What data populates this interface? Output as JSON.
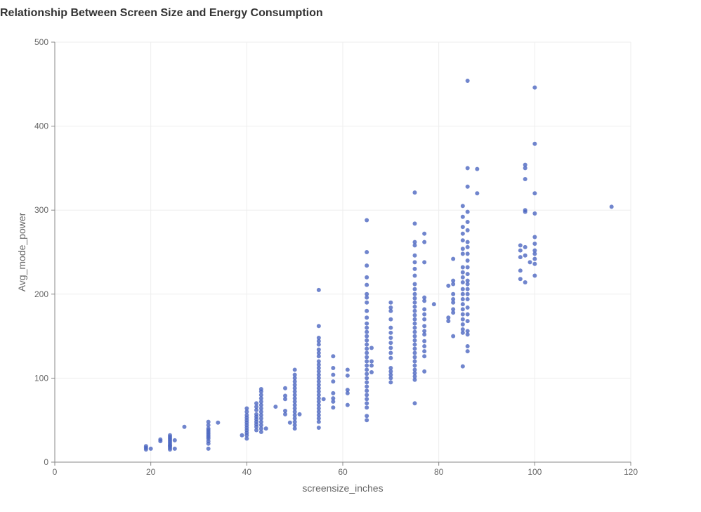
{
  "chart_data": {
    "type": "scatter",
    "title": "Relationship Between Screen Size and Energy Consumption",
    "xlabel": "screensize_inches",
    "ylabel": "Avg_mode_power",
    "xlim": [
      0,
      120
    ],
    "ylim": [
      0,
      500
    ],
    "x_ticks": [
      "0",
      "20",
      "40",
      "60",
      "80",
      "100",
      "120"
    ],
    "y_ticks": [
      "0",
      "100",
      "200",
      "300",
      "400",
      "500"
    ],
    "grid": true,
    "point_color": "#4c66c0",
    "points": [
      [
        19,
        15
      ],
      [
        19,
        17
      ],
      [
        19,
        19
      ],
      [
        20,
        16
      ],
      [
        22,
        25
      ],
      [
        22,
        27
      ],
      [
        24,
        15
      ],
      [
        24,
        17
      ],
      [
        24,
        19
      ],
      [
        24,
        20
      ],
      [
        24,
        22
      ],
      [
        24,
        24
      ],
      [
        24,
        26
      ],
      [
        24,
        28
      ],
      [
        24,
        30
      ],
      [
        24,
        32
      ],
      [
        25,
        16
      ],
      [
        25,
        26
      ],
      [
        27,
        42
      ],
      [
        32,
        16
      ],
      [
        32,
        22
      ],
      [
        32,
        25
      ],
      [
        32,
        28
      ],
      [
        32,
        30
      ],
      [
        32,
        32
      ],
      [
        32,
        34
      ],
      [
        32,
        36
      ],
      [
        32,
        38
      ],
      [
        32,
        40
      ],
      [
        32,
        44
      ],
      [
        32,
        48
      ],
      [
        34,
        47
      ],
      [
        39,
        32
      ],
      [
        40,
        28
      ],
      [
        40,
        32
      ],
      [
        40,
        35
      ],
      [
        40,
        38
      ],
      [
        40,
        41
      ],
      [
        40,
        44
      ],
      [
        40,
        47
      ],
      [
        40,
        50
      ],
      [
        40,
        53
      ],
      [
        40,
        56
      ],
      [
        40,
        60
      ],
      [
        40,
        64
      ],
      [
        42,
        38
      ],
      [
        42,
        42
      ],
      [
        42,
        45
      ],
      [
        42,
        48
      ],
      [
        42,
        51
      ],
      [
        42,
        54
      ],
      [
        42,
        57
      ],
      [
        42,
        62
      ],
      [
        42,
        66
      ],
      [
        42,
        70
      ],
      [
        43,
        36
      ],
      [
        43,
        40
      ],
      [
        43,
        44
      ],
      [
        43,
        48
      ],
      [
        43,
        52
      ],
      [
        43,
        56
      ],
      [
        43,
        60
      ],
      [
        43,
        64
      ],
      [
        43,
        68
      ],
      [
        43,
        72
      ],
      [
        43,
        76
      ],
      [
        43,
        80
      ],
      [
        43,
        84
      ],
      [
        43,
        87
      ],
      [
        44,
        40
      ],
      [
        46,
        66
      ],
      [
        48,
        57
      ],
      [
        48,
        61
      ],
      [
        48,
        75
      ],
      [
        48,
        79
      ],
      [
        48,
        88
      ],
      [
        49,
        47
      ],
      [
        50,
        40
      ],
      [
        50,
        44
      ],
      [
        50,
        48
      ],
      [
        50,
        52
      ],
      [
        50,
        56
      ],
      [
        50,
        60
      ],
      [
        50,
        64
      ],
      [
        50,
        68
      ],
      [
        50,
        72
      ],
      [
        50,
        76
      ],
      [
        50,
        80
      ],
      [
        50,
        84
      ],
      [
        50,
        88
      ],
      [
        50,
        92
      ],
      [
        50,
        96
      ],
      [
        50,
        100
      ],
      [
        50,
        104
      ],
      [
        50,
        110
      ],
      [
        51,
        57
      ],
      [
        55,
        41
      ],
      [
        55,
        48
      ],
      [
        55,
        52
      ],
      [
        55,
        56
      ],
      [
        55,
        60
      ],
      [
        55,
        64
      ],
      [
        55,
        68
      ],
      [
        55,
        72
      ],
      [
        55,
        76
      ],
      [
        55,
        80
      ],
      [
        55,
        84
      ],
      [
        55,
        88
      ],
      [
        55,
        92
      ],
      [
        55,
        96
      ],
      [
        55,
        100
      ],
      [
        55,
        104
      ],
      [
        55,
        108
      ],
      [
        55,
        112
      ],
      [
        55,
        116
      ],
      [
        55,
        120
      ],
      [
        55,
        126
      ],
      [
        55,
        130
      ],
      [
        55,
        134
      ],
      [
        55,
        140
      ],
      [
        55,
        144
      ],
      [
        55,
        148
      ],
      [
        55,
        162
      ],
      [
        55,
        205
      ],
      [
        56,
        75
      ],
      [
        58,
        65
      ],
      [
        58,
        72
      ],
      [
        58,
        76
      ],
      [
        58,
        82
      ],
      [
        58,
        96
      ],
      [
        58,
        104
      ],
      [
        58,
        112
      ],
      [
        58,
        126
      ],
      [
        61,
        68
      ],
      [
        61,
        82
      ],
      [
        61,
        86
      ],
      [
        61,
        103
      ],
      [
        61,
        110
      ],
      [
        65,
        50
      ],
      [
        65,
        55
      ],
      [
        65,
        65
      ],
      [
        65,
        70
      ],
      [
        65,
        75
      ],
      [
        65,
        80
      ],
      [
        65,
        85
      ],
      [
        65,
        90
      ],
      [
        65,
        95
      ],
      [
        65,
        100
      ],
      [
        65,
        105
      ],
      [
        65,
        110
      ],
      [
        65,
        115
      ],
      [
        65,
        120
      ],
      [
        65,
        125
      ],
      [
        65,
        130
      ],
      [
        65,
        135
      ],
      [
        65,
        140
      ],
      [
        65,
        145
      ],
      [
        65,
        150
      ],
      [
        65,
        155
      ],
      [
        65,
        160
      ],
      [
        65,
        165
      ],
      [
        65,
        172
      ],
      [
        65,
        180
      ],
      [
        65,
        190
      ],
      [
        65,
        196
      ],
      [
        65,
        200
      ],
      [
        65,
        211
      ],
      [
        65,
        220
      ],
      [
        65,
        234
      ],
      [
        65,
        250
      ],
      [
        65,
        288
      ],
      [
        66,
        107
      ],
      [
        66,
        115
      ],
      [
        66,
        120
      ],
      [
        66,
        136
      ],
      [
        70,
        95
      ],
      [
        70,
        100
      ],
      [
        70,
        104
      ],
      [
        70,
        108
      ],
      [
        70,
        112
      ],
      [
        70,
        124
      ],
      [
        70,
        130
      ],
      [
        70,
        136
      ],
      [
        70,
        142
      ],
      [
        70,
        148
      ],
      [
        70,
        154
      ],
      [
        70,
        160
      ],
      [
        70,
        170
      ],
      [
        70,
        180
      ],
      [
        70,
        184
      ],
      [
        70,
        190
      ],
      [
        75,
        70
      ],
      [
        75,
        98
      ],
      [
        75,
        102
      ],
      [
        75,
        106
      ],
      [
        75,
        110
      ],
      [
        75,
        115
      ],
      [
        75,
        120
      ],
      [
        75,
        125
      ],
      [
        75,
        130
      ],
      [
        75,
        135
      ],
      [
        75,
        140
      ],
      [
        75,
        145
      ],
      [
        75,
        150
      ],
      [
        75,
        155
      ],
      [
        75,
        160
      ],
      [
        75,
        165
      ],
      [
        75,
        170
      ],
      [
        75,
        175
      ],
      [
        75,
        180
      ],
      [
        75,
        185
      ],
      [
        75,
        190
      ],
      [
        75,
        195
      ],
      [
        75,
        200
      ],
      [
        75,
        206
      ],
      [
        75,
        212
      ],
      [
        75,
        222
      ],
      [
        75,
        230
      ],
      [
        75,
        238
      ],
      [
        75,
        246
      ],
      [
        75,
        258
      ],
      [
        75,
        262
      ],
      [
        75,
        284
      ],
      [
        75,
        321
      ],
      [
        77,
        108
      ],
      [
        77,
        126
      ],
      [
        77,
        132
      ],
      [
        77,
        138
      ],
      [
        77,
        144
      ],
      [
        77,
        152
      ],
      [
        77,
        156
      ],
      [
        77,
        162
      ],
      [
        77,
        170
      ],
      [
        77,
        176
      ],
      [
        77,
        182
      ],
      [
        77,
        192
      ],
      [
        77,
        196
      ],
      [
        77,
        238
      ],
      [
        77,
        262
      ],
      [
        77,
        272
      ],
      [
        79,
        188
      ],
      [
        82,
        168
      ],
      [
        82,
        172
      ],
      [
        82,
        210
      ],
      [
        83,
        150
      ],
      [
        83,
        178
      ],
      [
        83,
        182
      ],
      [
        83,
        190
      ],
      [
        83,
        194
      ],
      [
        83,
        200
      ],
      [
        83,
        212
      ],
      [
        83,
        216
      ],
      [
        83,
        242
      ],
      [
        85,
        114
      ],
      [
        85,
        154
      ],
      [
        85,
        158
      ],
      [
        85,
        164
      ],
      [
        85,
        170
      ],
      [
        85,
        176
      ],
      [
        85,
        182
      ],
      [
        85,
        188
      ],
      [
        85,
        194
      ],
      [
        85,
        200
      ],
      [
        85,
        206
      ],
      [
        85,
        214
      ],
      [
        85,
        220
      ],
      [
        85,
        226
      ],
      [
        85,
        232
      ],
      [
        85,
        248
      ],
      [
        85,
        254
      ],
      [
        85,
        264
      ],
      [
        85,
        272
      ],
      [
        85,
        280
      ],
      [
        85,
        292
      ],
      [
        85,
        305
      ],
      [
        86,
        132
      ],
      [
        86,
        138
      ],
      [
        86,
        152
      ],
      [
        86,
        156
      ],
      [
        86,
        168
      ],
      [
        86,
        176
      ],
      [
        86,
        184
      ],
      [
        86,
        194
      ],
      [
        86,
        200
      ],
      [
        86,
        206
      ],
      [
        86,
        212
      ],
      [
        86,
        216
      ],
      [
        86,
        224
      ],
      [
        86,
        232
      ],
      [
        86,
        240
      ],
      [
        86,
        248
      ],
      [
        86,
        256
      ],
      [
        86,
        262
      ],
      [
        86,
        276
      ],
      [
        86,
        286
      ],
      [
        86,
        298
      ],
      [
        86,
        328
      ],
      [
        86,
        350
      ],
      [
        86,
        454
      ],
      [
        88,
        320
      ],
      [
        88,
        349
      ],
      [
        97,
        218
      ],
      [
        97,
        228
      ],
      [
        97,
        244
      ],
      [
        97,
        252
      ],
      [
        97,
        258
      ],
      [
        98,
        214
      ],
      [
        98,
        246
      ],
      [
        98,
        256
      ],
      [
        98,
        298
      ],
      [
        98,
        300
      ],
      [
        98,
        337
      ],
      [
        98,
        350
      ],
      [
        98,
        354
      ],
      [
        99,
        238
      ],
      [
        100,
        222
      ],
      [
        100,
        236
      ],
      [
        100,
        242
      ],
      [
        100,
        248
      ],
      [
        100,
        252
      ],
      [
        100,
        260
      ],
      [
        100,
        268
      ],
      [
        100,
        296
      ],
      [
        100,
        320
      ],
      [
        100,
        379
      ],
      [
        100,
        446
      ],
      [
        116,
        304
      ]
    ]
  }
}
